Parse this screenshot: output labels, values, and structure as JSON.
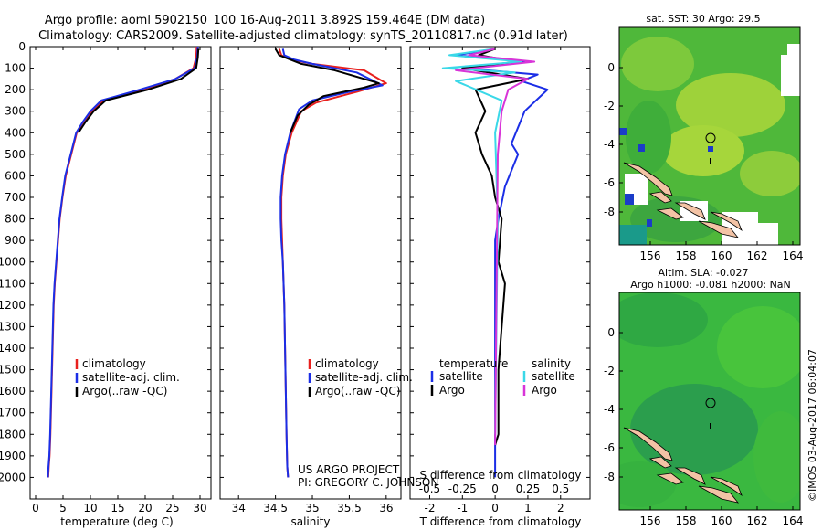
{
  "header": {
    "line1": "Argo profile: aoml 5902150_100 16-Aug-2011 3.892S 159.464E (DM data)",
    "line2": "Climatology: CARS2009. Satellite-adjusted climatology: synTS_20110817.nc (0.91d later)"
  },
  "colors": {
    "clim": "#e8201e",
    "sat": "#1b2ee6",
    "argo": "#000000",
    "sat_s": "#3ad8e8",
    "argo_s": "#d834d8"
  },
  "chart_data": [
    {
      "type": "line",
      "id": "temperature",
      "xlabel": "temperature (deg C)",
      "xlim": [
        -1,
        32
      ],
      "xticks": [
        0,
        5,
        10,
        15,
        20,
        25,
        30
      ],
      "ylim": [
        0,
        2100
      ],
      "yticks": [
        0,
        100,
        200,
        300,
        400,
        500,
        600,
        700,
        800,
        900,
        1000,
        1100,
        1200,
        1300,
        1400,
        1500,
        1600,
        1700,
        1800,
        1900,
        2000
      ],
      "legend": [
        "climatology",
        "satellite-adj. clim.",
        "Argo(..raw -QC)"
      ],
      "series": [
        {
          "name": "climatology",
          "color_key": "clim",
          "x": [
            29.4,
            29.3,
            28.8,
            25.5,
            19.5,
            12.5,
            10.2,
            8.7,
            7.5,
            6.5,
            5.5,
            4.9,
            4.4,
            4.1,
            3.8,
            3.5,
            3.3,
            3.1,
            2.9,
            2.7,
            2.55,
            2.4,
            2.3
          ],
          "y": [
            0,
            50,
            100,
            150,
            200,
            250,
            300,
            350,
            400,
            500,
            600,
            700,
            800,
            900,
            1000,
            1100,
            1200,
            1400,
            1600,
            1800,
            1900,
            1950,
            2000
          ]
        },
        {
          "name": "satellite-adj. clim.",
          "color_key": "sat",
          "x": [
            29.6,
            29.5,
            29.0,
            25.5,
            19.0,
            12.0,
            10.0,
            8.6,
            7.4,
            6.4,
            5.4,
            4.85,
            4.35,
            4.05,
            3.75,
            3.45,
            3.25,
            3.05,
            2.85,
            2.65,
            2.5,
            2.35,
            2.25
          ],
          "y": [
            0,
            50,
            100,
            150,
            200,
            250,
            300,
            350,
            400,
            500,
            600,
            700,
            800,
            900,
            1000,
            1100,
            1200,
            1400,
            1600,
            1800,
            1900,
            1950,
            2000
          ]
        },
        {
          "name": "Argo(..raw -QC)",
          "color_key": "argo",
          "x": [
            29.7,
            29.6,
            29.3,
            26.5,
            20.5,
            12.8,
            10.6,
            9.1,
            7.8
          ],
          "y": [
            10,
            50,
            100,
            150,
            200,
            250,
            300,
            350,
            400
          ]
        }
      ]
    },
    {
      "type": "line",
      "id": "salinity",
      "xlabel": "salinity",
      "xlim": [
        33.75,
        36.2
      ],
      "xticks": [
        34,
        34.5,
        35,
        35.5,
        36
      ],
      "ylim": [
        0,
        2100
      ],
      "legend": [
        "climatology",
        "satellite-adj. clim.",
        "Argo(..raw -QC)"
      ],
      "series": [
        {
          "name": "climatology",
          "color_key": "clim",
          "x": [
            34.55,
            34.58,
            34.7,
            35.0,
            35.7,
            36.0,
            35.6,
            35.05,
            34.85,
            34.72,
            34.64,
            34.6,
            34.58,
            34.58,
            34.59,
            34.6,
            34.61,
            34.62,
            34.63,
            34.64,
            34.65,
            34.66,
            34.67
          ],
          "y": [
            10,
            40,
            60,
            80,
            110,
            170,
            210,
            260,
            300,
            400,
            500,
            600,
            700,
            800,
            900,
            1000,
            1100,
            1200,
            1400,
            1600,
            1800,
            1950,
            2000
          ]
        },
        {
          "name": "satellite-adj. clim.",
          "color_key": "sat",
          "x": [
            34.6,
            34.62,
            34.75,
            35.0,
            35.6,
            35.95,
            35.5,
            35.0,
            34.82,
            34.7,
            34.63,
            34.59,
            34.57,
            34.57,
            34.58,
            34.6,
            34.61,
            34.62,
            34.63,
            34.64,
            34.65,
            34.66,
            34.67
          ],
          "y": [
            10,
            40,
            60,
            80,
            120,
            180,
            210,
            250,
            290,
            400,
            500,
            600,
            700,
            800,
            900,
            1000,
            1100,
            1200,
            1400,
            1600,
            1800,
            1950,
            2000
          ]
        },
        {
          "name": "Argo(..raw -QC)",
          "color_key": "argo",
          "x": [
            34.5,
            34.55,
            34.85,
            35.3,
            35.9,
            35.7,
            35.15,
            34.95,
            34.8,
            34.7
          ],
          "y": [
            10,
            40,
            80,
            110,
            170,
            190,
            230,
            270,
            320,
            400
          ]
        }
      ]
    },
    {
      "type": "line",
      "id": "differences",
      "xlabel_top": "S difference from climatology",
      "xlabel": "T difference from climatology",
      "xlim": [
        -2.6,
        2.9
      ],
      "xticks": [
        -2,
        -1,
        0,
        1,
        2
      ],
      "xlim_s": [
        -0.65,
        0.725
      ],
      "xticks_s": [
        "-0.5",
        "-0.25",
        "0",
        "0.25",
        "0.5"
      ],
      "ylim": [
        0,
        2100
      ],
      "legend_temperature_title": "temperature",
      "legend_salinity_title": "salinity",
      "legend_temperature": [
        "satellite",
        "Argo"
      ],
      "legend_salinity": [
        "satellite",
        "Argo"
      ],
      "series": [
        {
          "name": "T satellite",
          "color_key": "sat",
          "x": [
            0.0,
            -1.2,
            0.9,
            -1.0,
            1.3,
            0.8,
            1.6,
            0.9,
            0.5,
            0.7,
            0.3,
            0.1,
            0.0,
            0.0,
            0.0,
            0.0,
            0.0,
            0.0
          ],
          "y": [
            10,
            40,
            70,
            100,
            130,
            160,
            200,
            300,
            450,
            500,
            650,
            800,
            900,
            1100,
            1300,
            1500,
            1800,
            2000
          ]
        },
        {
          "name": "T Argo",
          "color_key": "argo",
          "x": [
            0.0,
            -0.5,
            0.7,
            -1.0,
            1.0,
            -0.6,
            -0.3,
            -0.6,
            -0.4,
            -0.1,
            0.0,
            0.2,
            0.1,
            0.3,
            0.2,
            0.1,
            0.1,
            0.0
          ],
          "y": [
            10,
            40,
            70,
            100,
            150,
            200,
            300,
            400,
            500,
            600,
            700,
            800,
            1000,
            1100,
            1300,
            1500,
            1800,
            1850
          ]
        },
        {
          "name": "S satellite",
          "color_key": "sat_s",
          "x": [
            0.0,
            -0.35,
            0.2,
            -0.4,
            0.15,
            -0.3,
            0.05,
            0.0,
            0.02,
            0.0
          ],
          "y": [
            10,
            40,
            70,
            100,
            120,
            160,
            250,
            400,
            800,
            1800
          ]
        },
        {
          "name": "S Argo",
          "color_key": "argo_s",
          "x": [
            0.0,
            -0.2,
            0.3,
            -0.3,
            0.25,
            0.1,
            0.05,
            0.02,
            0.0
          ],
          "y": [
            10,
            40,
            70,
            110,
            150,
            200,
            300,
            500,
            1850
          ]
        }
      ]
    }
  ],
  "annotations": {
    "project_line1": "US ARGO PROJECT",
    "project_line2": "PI: GREGORY C. JOHNSON"
  },
  "maps": {
    "sst_title": "sat. SST: 30 Argo: 29.5",
    "sla_title1": "Altim. SLA: -0.027",
    "sla_title2": "Argo h1000: -0.081 h2000: NaN",
    "x_ticks": [
      "156",
      "158",
      "160",
      "162",
      "164"
    ],
    "y_ticks": [
      "0",
      "-2",
      "-4",
      "-6",
      "-8"
    ]
  },
  "footer": {
    "credit": "©IMOS 03-Aug-2017 06:04:07"
  }
}
